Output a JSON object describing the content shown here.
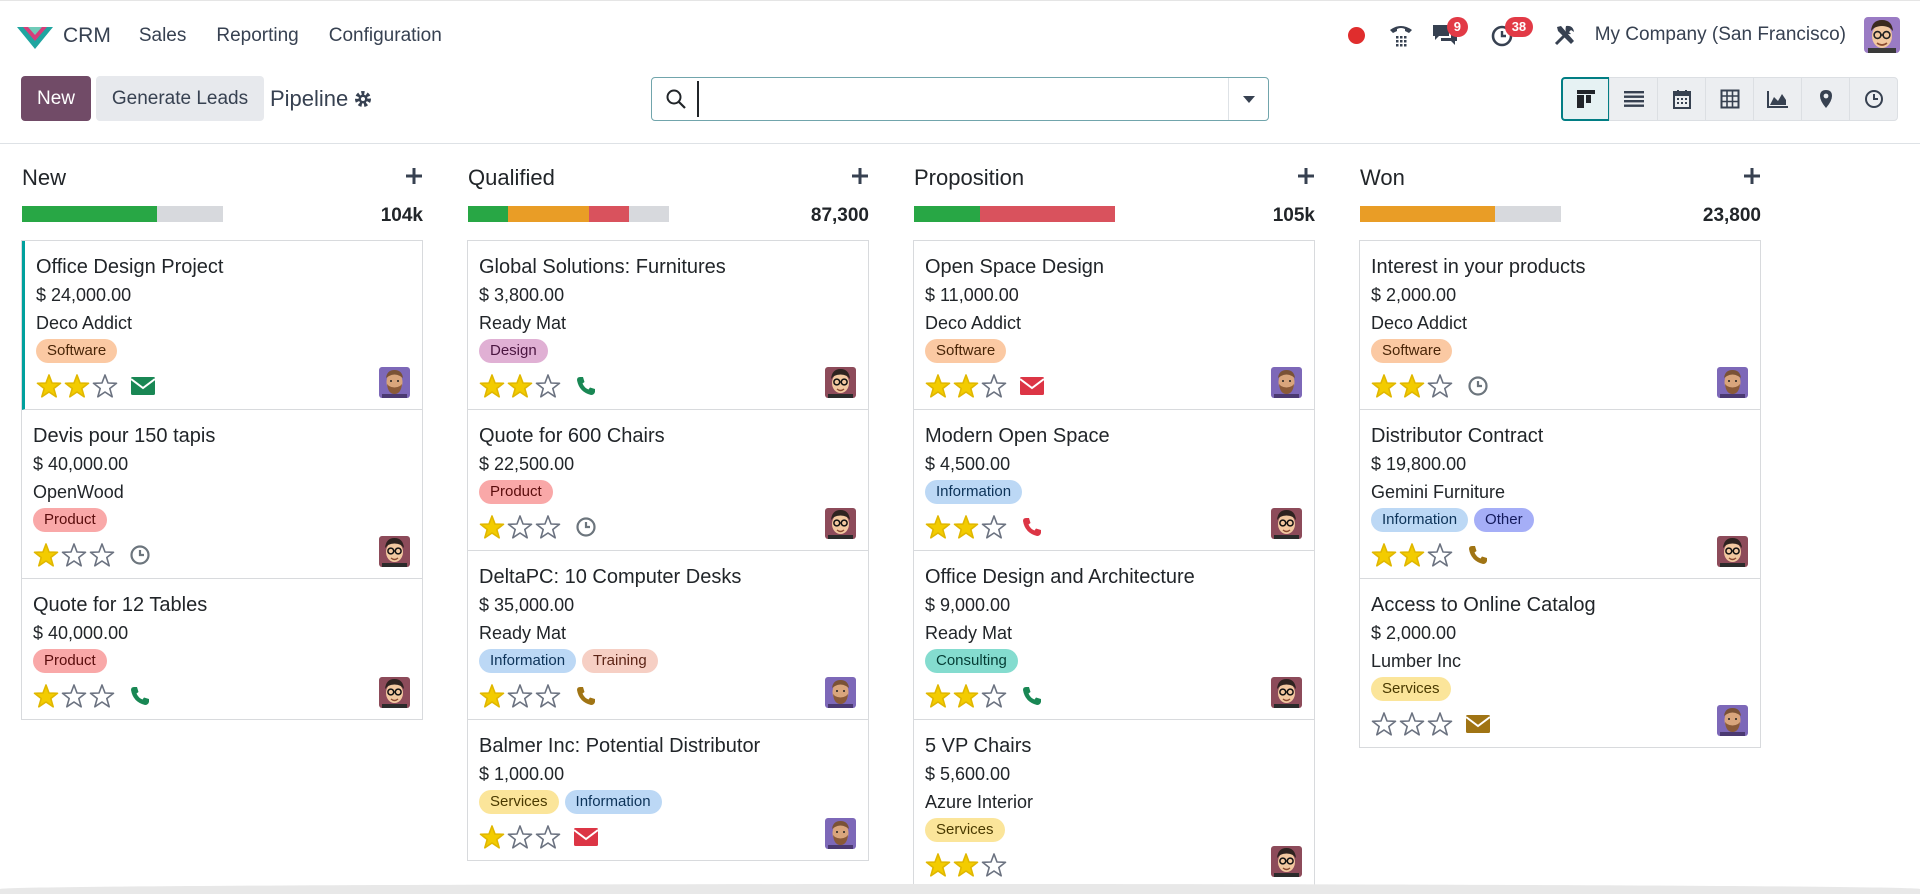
{
  "app": {
    "name": "CRM"
  },
  "menu": [
    {
      "label": "Sales"
    },
    {
      "label": "Reporting"
    },
    {
      "label": "Configuration"
    }
  ],
  "systray": {
    "messages_count": "9",
    "activities_count": "38",
    "company": "My Company (San Francisco)"
  },
  "control": {
    "new_label": "New",
    "generate_label": "Generate Leads",
    "title": "Pipeline",
    "search_value": ""
  },
  "colors": {
    "primary": "#714b67",
    "accent": "#017e84",
    "progress_green": "#28a745",
    "progress_orange": "#e99d26",
    "progress_red": "#d9525d",
    "progress_grey": "#d7d9dd",
    "star_filled": "#f3cc00"
  },
  "columns": [
    {
      "title": "New",
      "total": "104k",
      "progress": [
        {
          "color": "#28a745",
          "fraction": 0.67
        }
      ],
      "cards": [
        {
          "title": "Office Design Project",
          "amount": "$ 24,000.00",
          "partner": "Deco Addict",
          "tags": [
            {
              "label": "Software",
              "bg": "#fbc9a3",
              "fg": "#4a2608"
            }
          ],
          "stars": 2,
          "activity": "email-icon",
          "activity_color": "#198754",
          "avatar": "bearded",
          "selected": true
        },
        {
          "title": "Devis pour 150 tapis",
          "amount": "$ 40,000.00",
          "partner": "OpenWood",
          "tags": [
            {
              "label": "Product",
              "bg": "#f9a8a8",
              "fg": "#5a0c0c"
            }
          ],
          "stars": 1,
          "activity": "clock-icon",
          "activity_color": "#6c757d",
          "avatar": "glasses"
        },
        {
          "title": "Quote for 12 Tables",
          "amount": "$ 40,000.00",
          "partner": "",
          "tags": [
            {
              "label": "Product",
              "bg": "#f9a8a8",
              "fg": "#5a0c0c"
            }
          ],
          "stars": 1,
          "activity": "phone-icon",
          "activity_color": "#198754",
          "avatar": "glasses"
        }
      ]
    },
    {
      "title": "Qualified",
      "total": "87,300",
      "progress": [
        {
          "color": "#28a745",
          "fraction": 0.2
        },
        {
          "color": "#e99d26",
          "fraction": 0.4
        },
        {
          "color": "#d9525d",
          "fraction": 0.2
        }
      ],
      "cards": [
        {
          "title": "Global Solutions: Furnitures",
          "amount": "$ 3,800.00",
          "partner": "Ready Mat",
          "tags": [
            {
              "label": "Design",
              "bg": "#e0b0d4",
              "fg": "#4a1540"
            }
          ],
          "stars": 2,
          "activity": "phone-icon",
          "activity_color": "#198754",
          "avatar": "glasses"
        },
        {
          "title": "Quote for 600 Chairs",
          "amount": "$ 22,500.00",
          "partner": "",
          "tags": [
            {
              "label": "Product",
              "bg": "#f9a8a8",
              "fg": "#5a0c0c"
            }
          ],
          "stars": 1,
          "activity": "clock-icon",
          "activity_color": "#6c757d",
          "avatar": "glasses"
        },
        {
          "title": "DeltaPC: 10 Computer Desks",
          "amount": "$ 35,000.00",
          "partner": "Ready Mat",
          "tags": [
            {
              "label": "Information",
              "bg": "#bcd8f5",
              "fg": "#0d3359"
            },
            {
              "label": "Training",
              "bg": "#f6cfc4",
              "fg": "#5c2416"
            }
          ],
          "stars": 1,
          "activity": "phone-icon",
          "activity_color": "#a07414",
          "avatar": "bearded"
        },
        {
          "title": "Balmer Inc: Potential Distributor",
          "amount": "$ 1,000.00",
          "partner": "",
          "tags": [
            {
              "label": "Services",
              "bg": "#fbe59a",
              "fg": "#4a3a00"
            },
            {
              "label": "Information",
              "bg": "#bcd8f5",
              "fg": "#0d3359"
            }
          ],
          "stars": 1,
          "activity": "email-icon",
          "activity_color": "#dc3545",
          "avatar": "bearded"
        }
      ]
    },
    {
      "title": "Proposition",
      "total": "105k",
      "progress": [
        {
          "color": "#28a745",
          "fraction": 0.33
        },
        {
          "color": "#d9525d",
          "fraction": 0.67
        }
      ],
      "cards": [
        {
          "title": "Open Space Design",
          "amount": "$ 11,000.00",
          "partner": "Deco Addict",
          "tags": [
            {
              "label": "Software",
              "bg": "#fbc9a3",
              "fg": "#4a2608"
            }
          ],
          "stars": 2,
          "activity": "email-icon",
          "activity_color": "#dc3545",
          "avatar": "bearded"
        },
        {
          "title": "Modern Open Space",
          "amount": "$ 4,500.00",
          "partner": "",
          "tags": [
            {
              "label": "Information",
              "bg": "#bcd8f5",
              "fg": "#0d3359"
            }
          ],
          "stars": 2,
          "activity": "phone-icon",
          "activity_color": "#dc3545",
          "avatar": "glasses"
        },
        {
          "title": "Office Design and Architecture",
          "amount": "$ 9,000.00",
          "partner": "Ready Mat",
          "tags": [
            {
              "label": "Consulting",
              "bg": "#84dccf",
              "fg": "#053d35"
            }
          ],
          "stars": 2,
          "activity": "phone-icon",
          "activity_color": "#198754",
          "avatar": "glasses"
        },
        {
          "title": "5 VP Chairs",
          "amount": "$ 5,600.00",
          "partner": "Azure Interior",
          "tags": [
            {
              "label": "Services",
              "bg": "#fbe59a",
              "fg": "#4a3a00"
            }
          ],
          "stars": 2,
          "activity": "",
          "activity_color": "#6c757d",
          "avatar": "glasses"
        }
      ]
    },
    {
      "title": "Won",
      "total": "23,800",
      "progress": [
        {
          "color": "#e99d26",
          "fraction": 0.67
        }
      ],
      "cards": [
        {
          "title": "Interest in your products",
          "amount": "$ 2,000.00",
          "partner": "Deco Addict",
          "tags": [
            {
              "label": "Software",
              "bg": "#fbc9a3",
              "fg": "#4a2608"
            }
          ],
          "stars": 2,
          "activity": "clock-icon",
          "activity_color": "#6c757d",
          "avatar": "bearded"
        },
        {
          "title": "Distributor Contract",
          "amount": "$ 19,800.00",
          "partner": "Gemini Furniture",
          "tags": [
            {
              "label": "Information",
              "bg": "#bcd8f5",
              "fg": "#0d3359"
            },
            {
              "label": "Other",
              "bg": "#a5aef7",
              "fg": "#141a5c"
            }
          ],
          "stars": 2,
          "activity": "phone-icon",
          "activity_color": "#a07414",
          "avatar": "glasses"
        },
        {
          "title": "Access to Online Catalog",
          "amount": "$ 2,000.00",
          "partner": "Lumber Inc",
          "tags": [
            {
              "label": "Services",
              "bg": "#fbe59a",
              "fg": "#4a3a00"
            }
          ],
          "stars": 0,
          "activity": "email-icon",
          "activity_color": "#a07414",
          "avatar": "bearded"
        }
      ]
    }
  ]
}
